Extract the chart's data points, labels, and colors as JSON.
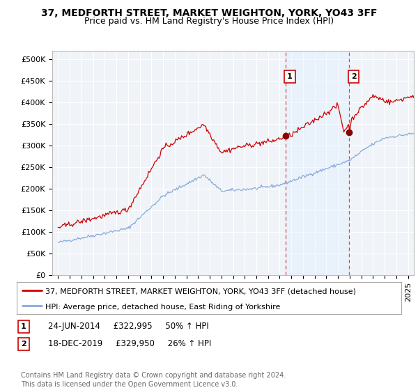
{
  "title": "37, MEDFORTH STREET, MARKET WEIGHTON, YORK, YO43 3FF",
  "subtitle": "Price paid vs. HM Land Registry's House Price Index (HPI)",
  "ylabel_ticks": [
    "£0",
    "£50K",
    "£100K",
    "£150K",
    "£200K",
    "£250K",
    "£300K",
    "£350K",
    "£400K",
    "£450K",
    "£500K"
  ],
  "ytick_vals": [
    0,
    50000,
    100000,
    150000,
    200000,
    250000,
    300000,
    350000,
    400000,
    450000,
    500000
  ],
  "ylim": [
    0,
    520000
  ],
  "xlim_start": 1994.5,
  "xlim_end": 2025.5,
  "sale1_date": 2014.48,
  "sale1_price": 322995,
  "sale1_label": "1",
  "sale1_row": "24-JUN-2014     £322,995     50% ↑ HPI",
  "sale2_date": 2019.96,
  "sale2_price": 329950,
  "sale2_label": "2",
  "sale2_row": "18-DEC-2019     £329,950     26% ↑ HPI",
  "legend_line1": "37, MEDFORTH STREET, MARKET WEIGHTON, YORK, YO43 3FF (detached house)",
  "legend_line2": "HPI: Average price, detached house, East Riding of Yorkshire",
  "footer": "Contains HM Land Registry data © Crown copyright and database right 2024.\nThis data is licensed under the Open Government Licence v3.0.",
  "line_color_red": "#cc0000",
  "line_color_blue": "#88aadd",
  "shade_color": "#ddeeff",
  "sale_marker_color": "#880000",
  "vline_color": "#dd4444",
  "background_color": "#ffffff",
  "plot_bg_color": "#f0f4f8",
  "grid_color": "#ffffff",
  "title_fontsize": 10,
  "subtitle_fontsize": 9,
  "tick_fontsize": 8,
  "legend_fontsize": 8,
  "footer_fontsize": 7
}
